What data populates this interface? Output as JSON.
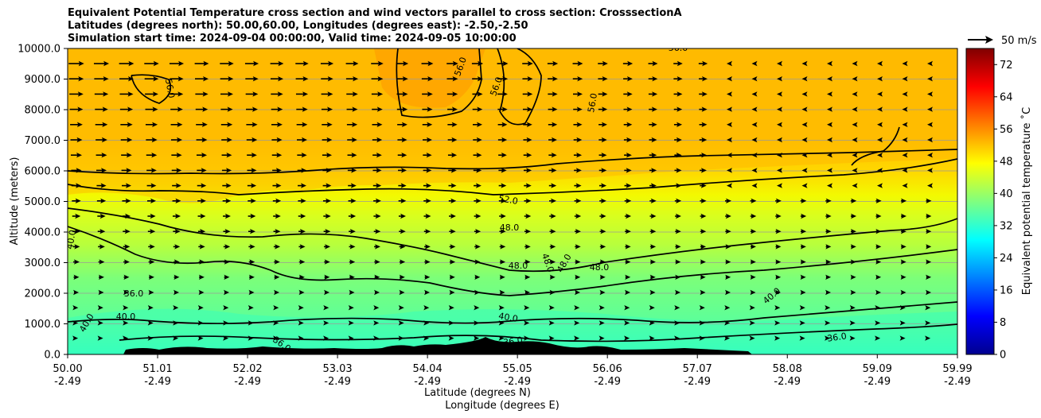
{
  "title_lines": [
    "Equivalent Potential Temperature cross section and wind vectors parallel to cross section: CrosssectionA",
    "Latitudes (degrees north): 50.00,60.00, Longitudes (degrees east): -2.50,-2.50",
    "Simulation start time: 2024-09-04 00:00:00, Valid time: 2024-09-05 10:00:00"
  ],
  "chart_data": {
    "type": "heatmap",
    "ylabel": "Altitude (meters)",
    "xlabel_lines": [
      "Latitude (degrees N)",
      "Longitude (degrees E)"
    ],
    "ylim": [
      0,
      10000
    ],
    "yticks": [
      "0.0",
      "1000.0",
      "2000.0",
      "3000.0",
      "4000.0",
      "5000.0",
      "6000.0",
      "7000.0",
      "8000.0",
      "9000.0",
      "10000.0"
    ],
    "xticks_lat": [
      "50.00",
      "51.01",
      "52.02",
      "53.03",
      "54.04",
      "55.05",
      "56.06",
      "57.07",
      "58.08",
      "59.09",
      "59.99"
    ],
    "xticks_lon": [
      "-2.49",
      "-2.49",
      "-2.49",
      "-2.49",
      "-2.49",
      "-2.49",
      "-2.49",
      "-2.49",
      "-2.49",
      "-2.49",
      "-2.49"
    ],
    "grid": "horizontal",
    "colorbar": {
      "label": "Equivalent potential temperature ˚C",
      "range": [
        0,
        76
      ],
      "ticks": [
        "0",
        "8",
        "16",
        "24",
        "32",
        "40",
        "48",
        "56",
        "64",
        "72"
      ],
      "colormap": "jet"
    },
    "quiver_key": "50 m/s",
    "contour_labels": [
      "36.0",
      "40.0",
      "48.0",
      "52.0",
      "56.0"
    ],
    "terrain_color": "#000000"
  }
}
